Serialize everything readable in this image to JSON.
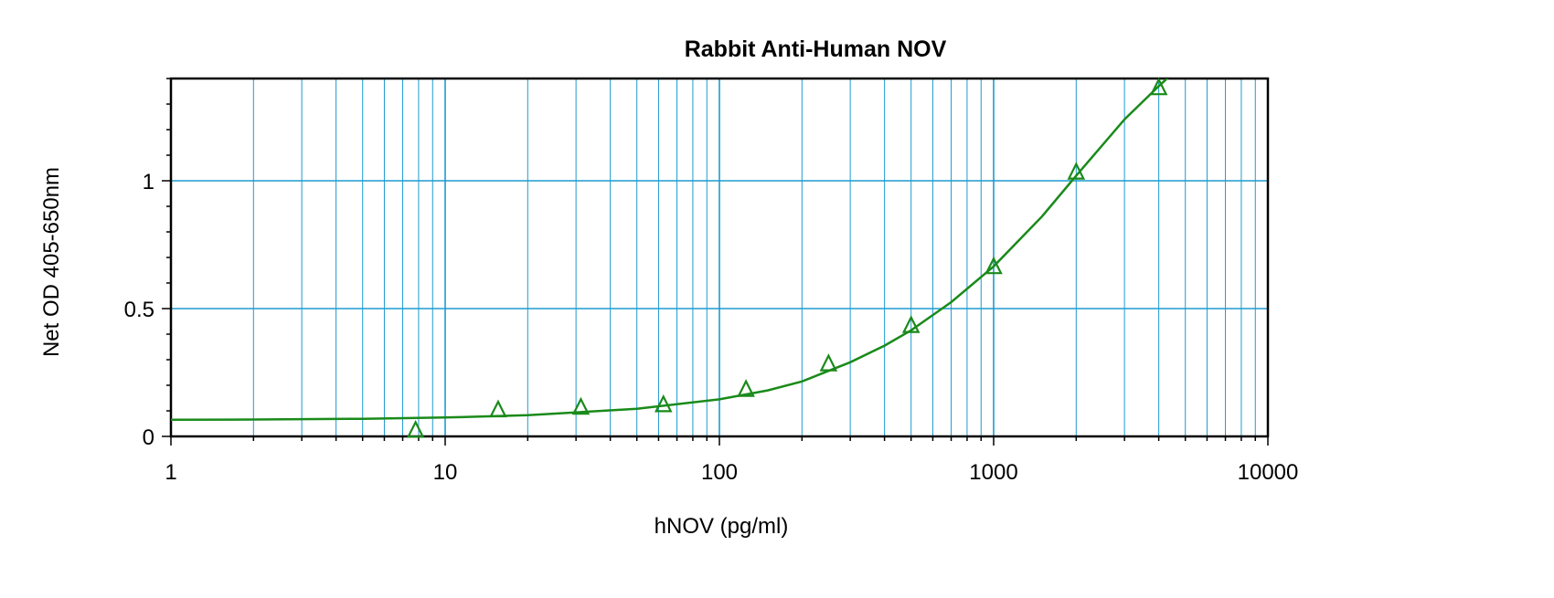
{
  "chart_data": {
    "type": "scatter",
    "title": "Rabbit Anti-Human NOV",
    "xlabel": "hNOV (pg/ml)",
    "ylabel": "Net OD 405-650nm",
    "x_scale": "log",
    "xlim": [
      1,
      10000
    ],
    "ylim": [
      0,
      1.4
    ],
    "x_ticks": [
      "1",
      "10",
      "100",
      "1000",
      "10000"
    ],
    "y_ticks": [
      "0",
      "0.5",
      "1"
    ],
    "grid": true,
    "colors": {
      "series": "#1a8a1a",
      "grid": "#1e9bd0",
      "axis": "#000000"
    },
    "series": [
      {
        "marker": "triangle-open",
        "points": [
          {
            "x": 7.8,
            "y": 0.02
          },
          {
            "x": 15.6,
            "y": 0.1
          },
          {
            "x": 31.25,
            "y": 0.11
          },
          {
            "x": 62.5,
            "y": 0.12
          },
          {
            "x": 125,
            "y": 0.18
          },
          {
            "x": 250,
            "y": 0.28
          },
          {
            "x": 500,
            "y": 0.43
          },
          {
            "x": 1000,
            "y": 0.66
          },
          {
            "x": 2000,
            "y": 1.03
          },
          {
            "x": 4000,
            "y": 1.36
          }
        ],
        "fit_curve": [
          {
            "x": 1,
            "y": 0.065
          },
          {
            "x": 2,
            "y": 0.066
          },
          {
            "x": 5,
            "y": 0.069
          },
          {
            "x": 10,
            "y": 0.074
          },
          {
            "x": 20,
            "y": 0.083
          },
          {
            "x": 50,
            "y": 0.108
          },
          {
            "x": 100,
            "y": 0.145
          },
          {
            "x": 150,
            "y": 0.18
          },
          {
            "x": 200,
            "y": 0.215
          },
          {
            "x": 300,
            "y": 0.29
          },
          {
            "x": 400,
            "y": 0.355
          },
          {
            "x": 500,
            "y": 0.415
          },
          {
            "x": 700,
            "y": 0.525
          },
          {
            "x": 1000,
            "y": 0.665
          },
          {
            "x": 1500,
            "y": 0.86
          },
          {
            "x": 2000,
            "y": 1.02
          },
          {
            "x": 3000,
            "y": 1.24
          },
          {
            "x": 4000,
            "y": 1.37
          },
          {
            "x": 4600,
            "y": 1.43
          }
        ]
      }
    ]
  }
}
